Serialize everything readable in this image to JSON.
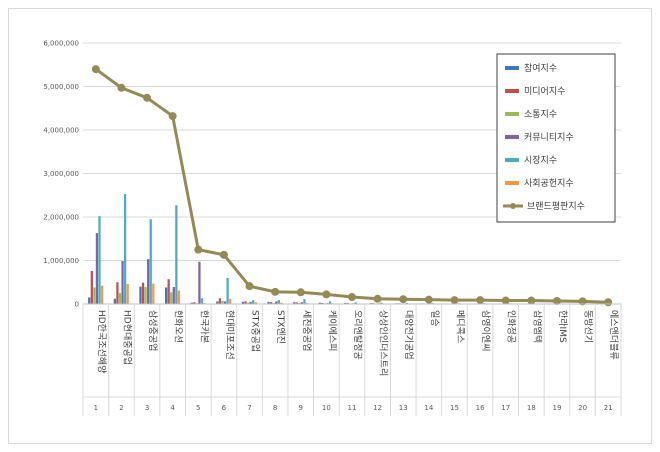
{
  "chart_data": {
    "type": "bar",
    "title": "",
    "ylim": [
      0,
      6000000
    ],
    "y_ticks": [
      "0",
      "1,000,000",
      "2,000,000",
      "3,000,000",
      "4,000,000",
      "5,000,000",
      "6,000,000"
    ],
    "y_tick_values": [
      0,
      1000000,
      2000000,
      3000000,
      4000000,
      5000000,
      6000000
    ],
    "categories": [
      "HD한국조선해양",
      "HD현대중공업",
      "삼성중공업",
      "한화오션",
      "한국카본",
      "현대미포조선",
      "STX중공업",
      "STX엔진",
      "세진중공업",
      "케이에스피",
      "오리엔탈정공",
      "상상인인더스트리",
      "대양전기공업",
      "일승",
      "메디콕스",
      "삼영이엔씨",
      "인화정공",
      "삼영엠텍",
      "한라IMS",
      "동방선기",
      "에스앤더블류"
    ],
    "category_numbers": [
      "1",
      "2",
      "3",
      "4",
      "5",
      "6",
      "7",
      "8",
      "9",
      "10",
      "11",
      "12",
      "13",
      "14",
      "15",
      "16",
      "17",
      "18",
      "19",
      "20",
      "21"
    ],
    "series": [
      {
        "name": "참여지수",
        "color": "#4472c4",
        "values": [
          150000,
          120000,
          400000,
          380000,
          30000,
          60000,
          50000,
          50000,
          40000,
          30000,
          25000,
          20000,
          15000,
          15000,
          12000,
          12000,
          10000,
          10000,
          8000,
          8000,
          6000
        ]
      },
      {
        "name": "미디어지수",
        "color": "#c0504d",
        "values": [
          760000,
          500000,
          490000,
          570000,
          40000,
          130000,
          60000,
          40000,
          35000,
          25000,
          20000,
          18000,
          15000,
          12000,
          10000,
          10000,
          9000,
          9000,
          7000,
          6000,
          5000
        ]
      },
      {
        "name": "소통지수",
        "color": "#9bbb59",
        "values": [
          380000,
          250000,
          390000,
          270000,
          20000,
          70000,
          30000,
          20000,
          20000,
          15000,
          12000,
          10000,
          8000,
          7000,
          6000,
          6000,
          5000,
          5000,
          4000,
          4000,
          3000
        ]
      },
      {
        "name": "커뮤니티지수",
        "color": "#8064a2",
        "values": [
          1630000,
          990000,
          1030000,
          390000,
          970000,
          60000,
          50000,
          60000,
          40000,
          20000,
          15000,
          15000,
          12000,
          10000,
          8000,
          8000,
          7000,
          7000,
          5000,
          5000,
          4000
        ]
      },
      {
        "name": "시장지수",
        "color": "#4bacc6",
        "values": [
          2020000,
          2530000,
          1950000,
          2270000,
          130000,
          600000,
          90000,
          90000,
          110000,
          60000,
          40000,
          30000,
          25000,
          20000,
          18000,
          18000,
          15000,
          15000,
          12000,
          10000,
          8000
        ]
      },
      {
        "name": "사회공헌지수",
        "color": "#f79646",
        "values": [
          420000,
          460000,
          470000,
          310000,
          20000,
          120000,
          40000,
          30000,
          20000,
          15000,
          10000,
          8000,
          6000,
          5000,
          4000,
          4000,
          3000,
          3000,
          2000,
          2000,
          2000
        ]
      }
    ],
    "line_series": {
      "name": "브랜드평판지수",
      "color": "#948a54",
      "values": [
        5400000,
        4970000,
        4740000,
        4320000,
        1250000,
        1130000,
        410000,
        280000,
        270000,
        220000,
        160000,
        120000,
        110000,
        100000,
        90000,
        90000,
        80000,
        80000,
        70000,
        60000,
        40000
      ]
    },
    "legend_placement": "top-right",
    "grid": true
  }
}
